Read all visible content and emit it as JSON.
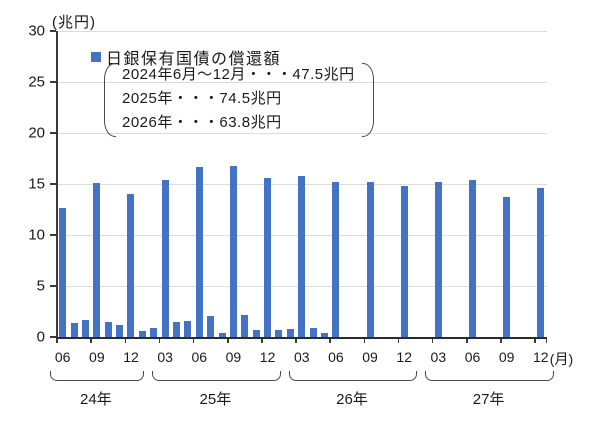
{
  "page": {
    "background": "#ffffff"
  },
  "chart_data": {
    "type": "bar",
    "title": "",
    "series_name": "日銀保有国債の償還額",
    "unit_label": "(兆円)",
    "month_unit_label": "(月)",
    "ylim": [
      0,
      30
    ],
    "yticks": [
      0,
      5,
      10,
      15,
      20,
      25,
      30
    ],
    "grid": true,
    "x_label_interval": 3,
    "legend": {
      "label": "日銀保有国債の償還額",
      "position": "top-left-inside"
    },
    "annotation": {
      "lines": [
        "2024年6月～12月・・・47.5兆円",
        "2025年・・・74.5兆円",
        "2026年・・・63.8兆円"
      ]
    },
    "year_groups": [
      {
        "label": "24年",
        "year": 2024,
        "months": [
          "06",
          "07",
          "08",
          "09",
          "10",
          "11",
          "12"
        ],
        "values": [
          12.6,
          1.4,
          1.7,
          15.1,
          1.5,
          1.2,
          14.0
        ]
      },
      {
        "label": "25年",
        "year": 2025,
        "months": [
          "01",
          "02",
          "03",
          "04",
          "05",
          "06",
          "07",
          "08",
          "09",
          "10",
          "11",
          "12"
        ],
        "values": [
          0.6,
          0.9,
          15.4,
          1.5,
          1.6,
          16.7,
          2.1,
          0.4,
          16.8,
          2.2,
          0.7,
          15.6
        ]
      },
      {
        "label": "26年",
        "year": 2026,
        "months": [
          "01",
          "02",
          "03",
          "04",
          "05",
          "06",
          "07",
          "08",
          "09",
          "10",
          "11",
          "12"
        ],
        "values": [
          0.7,
          0.8,
          15.8,
          0.9,
          0.4,
          15.2,
          0,
          0,
          15.2,
          0,
          0,
          14.8
        ]
      },
      {
        "label": "27年",
        "year": 2027,
        "months": [
          "01",
          "02",
          "03",
          "04",
          "05",
          "06",
          "07",
          "08",
          "09",
          "10",
          "11",
          "12"
        ],
        "values": [
          0,
          0,
          15.2,
          0,
          0,
          15.4,
          0,
          0,
          13.7,
          0,
          0,
          14.6
        ]
      }
    ],
    "colors": {
      "bar": "#4472c4",
      "gridline": "#dcdcdc",
      "axis": "#333333",
      "text": "#1a1a1a"
    }
  }
}
